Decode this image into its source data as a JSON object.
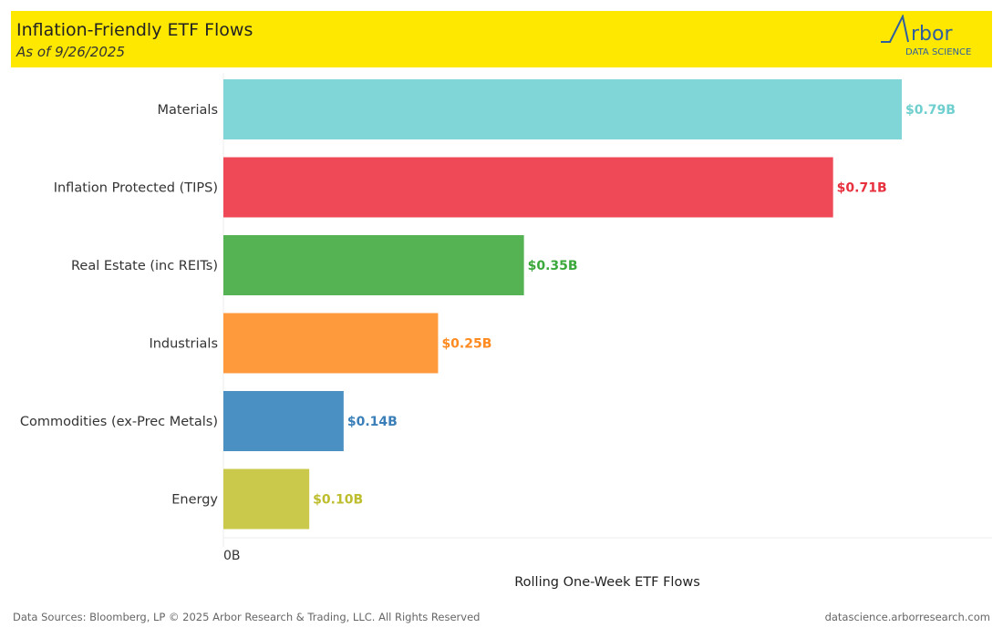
{
  "header": {
    "title": "Inflation-Friendly ETF Flows",
    "subtitle": "As of 9/26/2025",
    "logo_text": "Arbor DATA SCIENCE"
  },
  "chart_data": {
    "type": "bar",
    "orientation": "horizontal",
    "categories": [
      "Materials",
      "Inflation Protected (TIPS)",
      "Real Estate (inc REITs)",
      "Industrials",
      "Commodities (ex-Prec Metals)",
      "Energy"
    ],
    "values": [
      0.79,
      0.71,
      0.35,
      0.25,
      0.14,
      0.1
    ],
    "data_labels": [
      "$0.79B",
      "$0.71B",
      "$0.35B",
      "$0.25B",
      "$0.14B",
      "$0.10B"
    ],
    "colors": [
      "#80d5d6",
      "#ef4857",
      "#55b354",
      "#ff9a3c",
      "#4a90c2",
      "#cac94b"
    ],
    "label_colors": [
      "#6fcfcf",
      "#e8313f",
      "#3aa83a",
      "#ff8a1f",
      "#3a7fb8",
      "#bdbd2e"
    ],
    "x_ticks": [
      "0B"
    ],
    "xlabel": "Rolling One-Week ETF Flows",
    "xlim": [
      0,
      0.79
    ],
    "grid": false
  },
  "footer": {
    "left": "Data Sources: Bloomberg, LP © 2025 Arbor Research & Trading, LLC. All Rights Reserved",
    "right": "datascience.arborresearch.com"
  }
}
